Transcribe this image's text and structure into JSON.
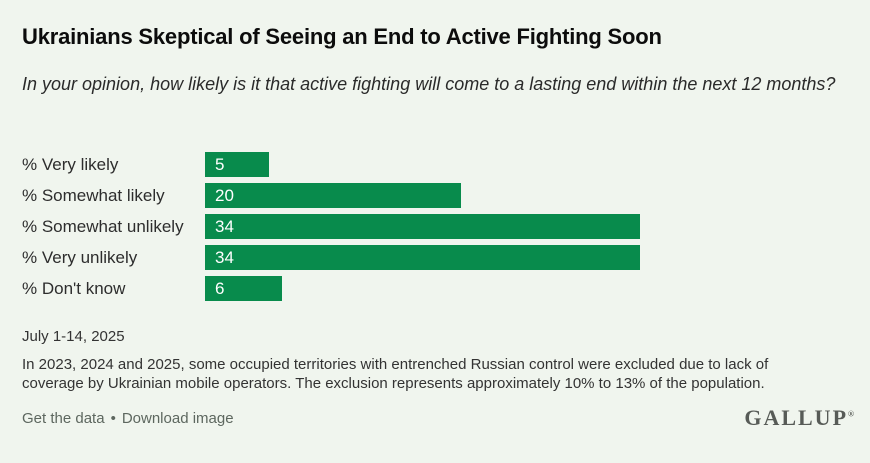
{
  "chart_data": {
    "type": "bar",
    "orientation": "horizontal",
    "title": "Ukrainians Skeptical of Seeing an End to Active Fighting Soon",
    "subtitle": "In your opinion, how likely is it that active fighting will come to a lasting end within the next 12 months?",
    "categories": [
      "% Very likely",
      "% Somewhat likely",
      "% Somewhat unlikely",
      "% Very unlikely",
      "% Don't know"
    ],
    "values": [
      5,
      20,
      34,
      34,
      6
    ],
    "xlim": [
      0,
      34
    ],
    "xlabel": "",
    "ylabel": "",
    "grid": false,
    "legend": "none",
    "bar_color": "#088b4c",
    "value_label_color": "#ffffff",
    "date_label": "July 1-14, 2025",
    "footnote": "In 2023, 2024 and 2025, some occupied territories with entrenched Russian control were excluded due to lack of coverage by Ukrainian mobile operators. The exclusion represents approximately 10% to 13% of the population."
  },
  "footer": {
    "get_data_label": "Get the data",
    "separator": "•",
    "download_label": "Download image",
    "brand": "GALLUP",
    "brand_mark": "®"
  },
  "colors": {
    "background": "#f0f5ee",
    "bar_green": "#088b4c",
    "title_text": "#0c0c0c",
    "body_text": "#2d2d2d",
    "muted_text": "#5d675f"
  }
}
